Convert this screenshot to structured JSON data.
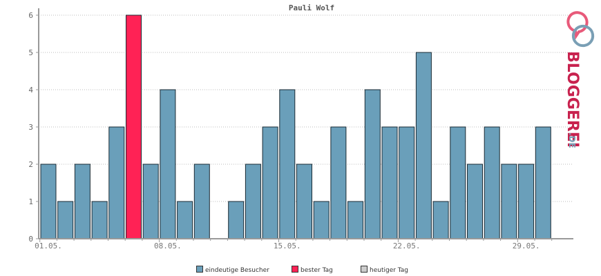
{
  "chart_data": {
    "type": "bar",
    "title": "Pauli Wolf",
    "categories": [
      "01.05.",
      "02.05.",
      "03.05.",
      "04.05.",
      "05.05.",
      "06.05.",
      "07.05.",
      "08.05.",
      "09.05.",
      "10.05.",
      "11.05.",
      "12.05.",
      "13.05.",
      "14.05.",
      "15.05.",
      "16.05.",
      "17.05.",
      "18.05.",
      "19.05.",
      "20.05.",
      "21.05.",
      "22.05.",
      "23.05.",
      "24.05.",
      "25.05.",
      "26.05.",
      "27.05.",
      "28.05.",
      "29.05.",
      "30.05."
    ],
    "values": [
      2,
      1,
      2,
      1,
      3,
      6,
      2,
      4,
      1,
      2,
      0,
      1,
      2,
      3,
      4,
      2,
      1,
      3,
      1,
      4,
      3,
      3,
      5,
      1,
      3,
      2,
      3,
      2,
      2,
      3
    ],
    "best_day_index": 5,
    "x_tick_labels": [
      "01.05.",
      "08.05.",
      "15.05.",
      "22.05.",
      "29.05."
    ],
    "y_ticks": [
      "0",
      "1",
      "2",
      "3",
      "4",
      "5",
      "6"
    ],
    "ylim": [
      0,
      6
    ],
    "grid": true,
    "colors": {
      "bar": "#6a9fba",
      "best": "#ff2255",
      "today": "#cccccc",
      "axis": "#999999",
      "grid": "#bbbbbb"
    }
  },
  "legend": {
    "unique_visitors": "eindeutige Besucher",
    "best_day": "bester Tag",
    "today": "heutiger Tag"
  },
  "logo": {
    "text_main": "BLOGGEREI",
    "text_suffix": ".DE"
  }
}
